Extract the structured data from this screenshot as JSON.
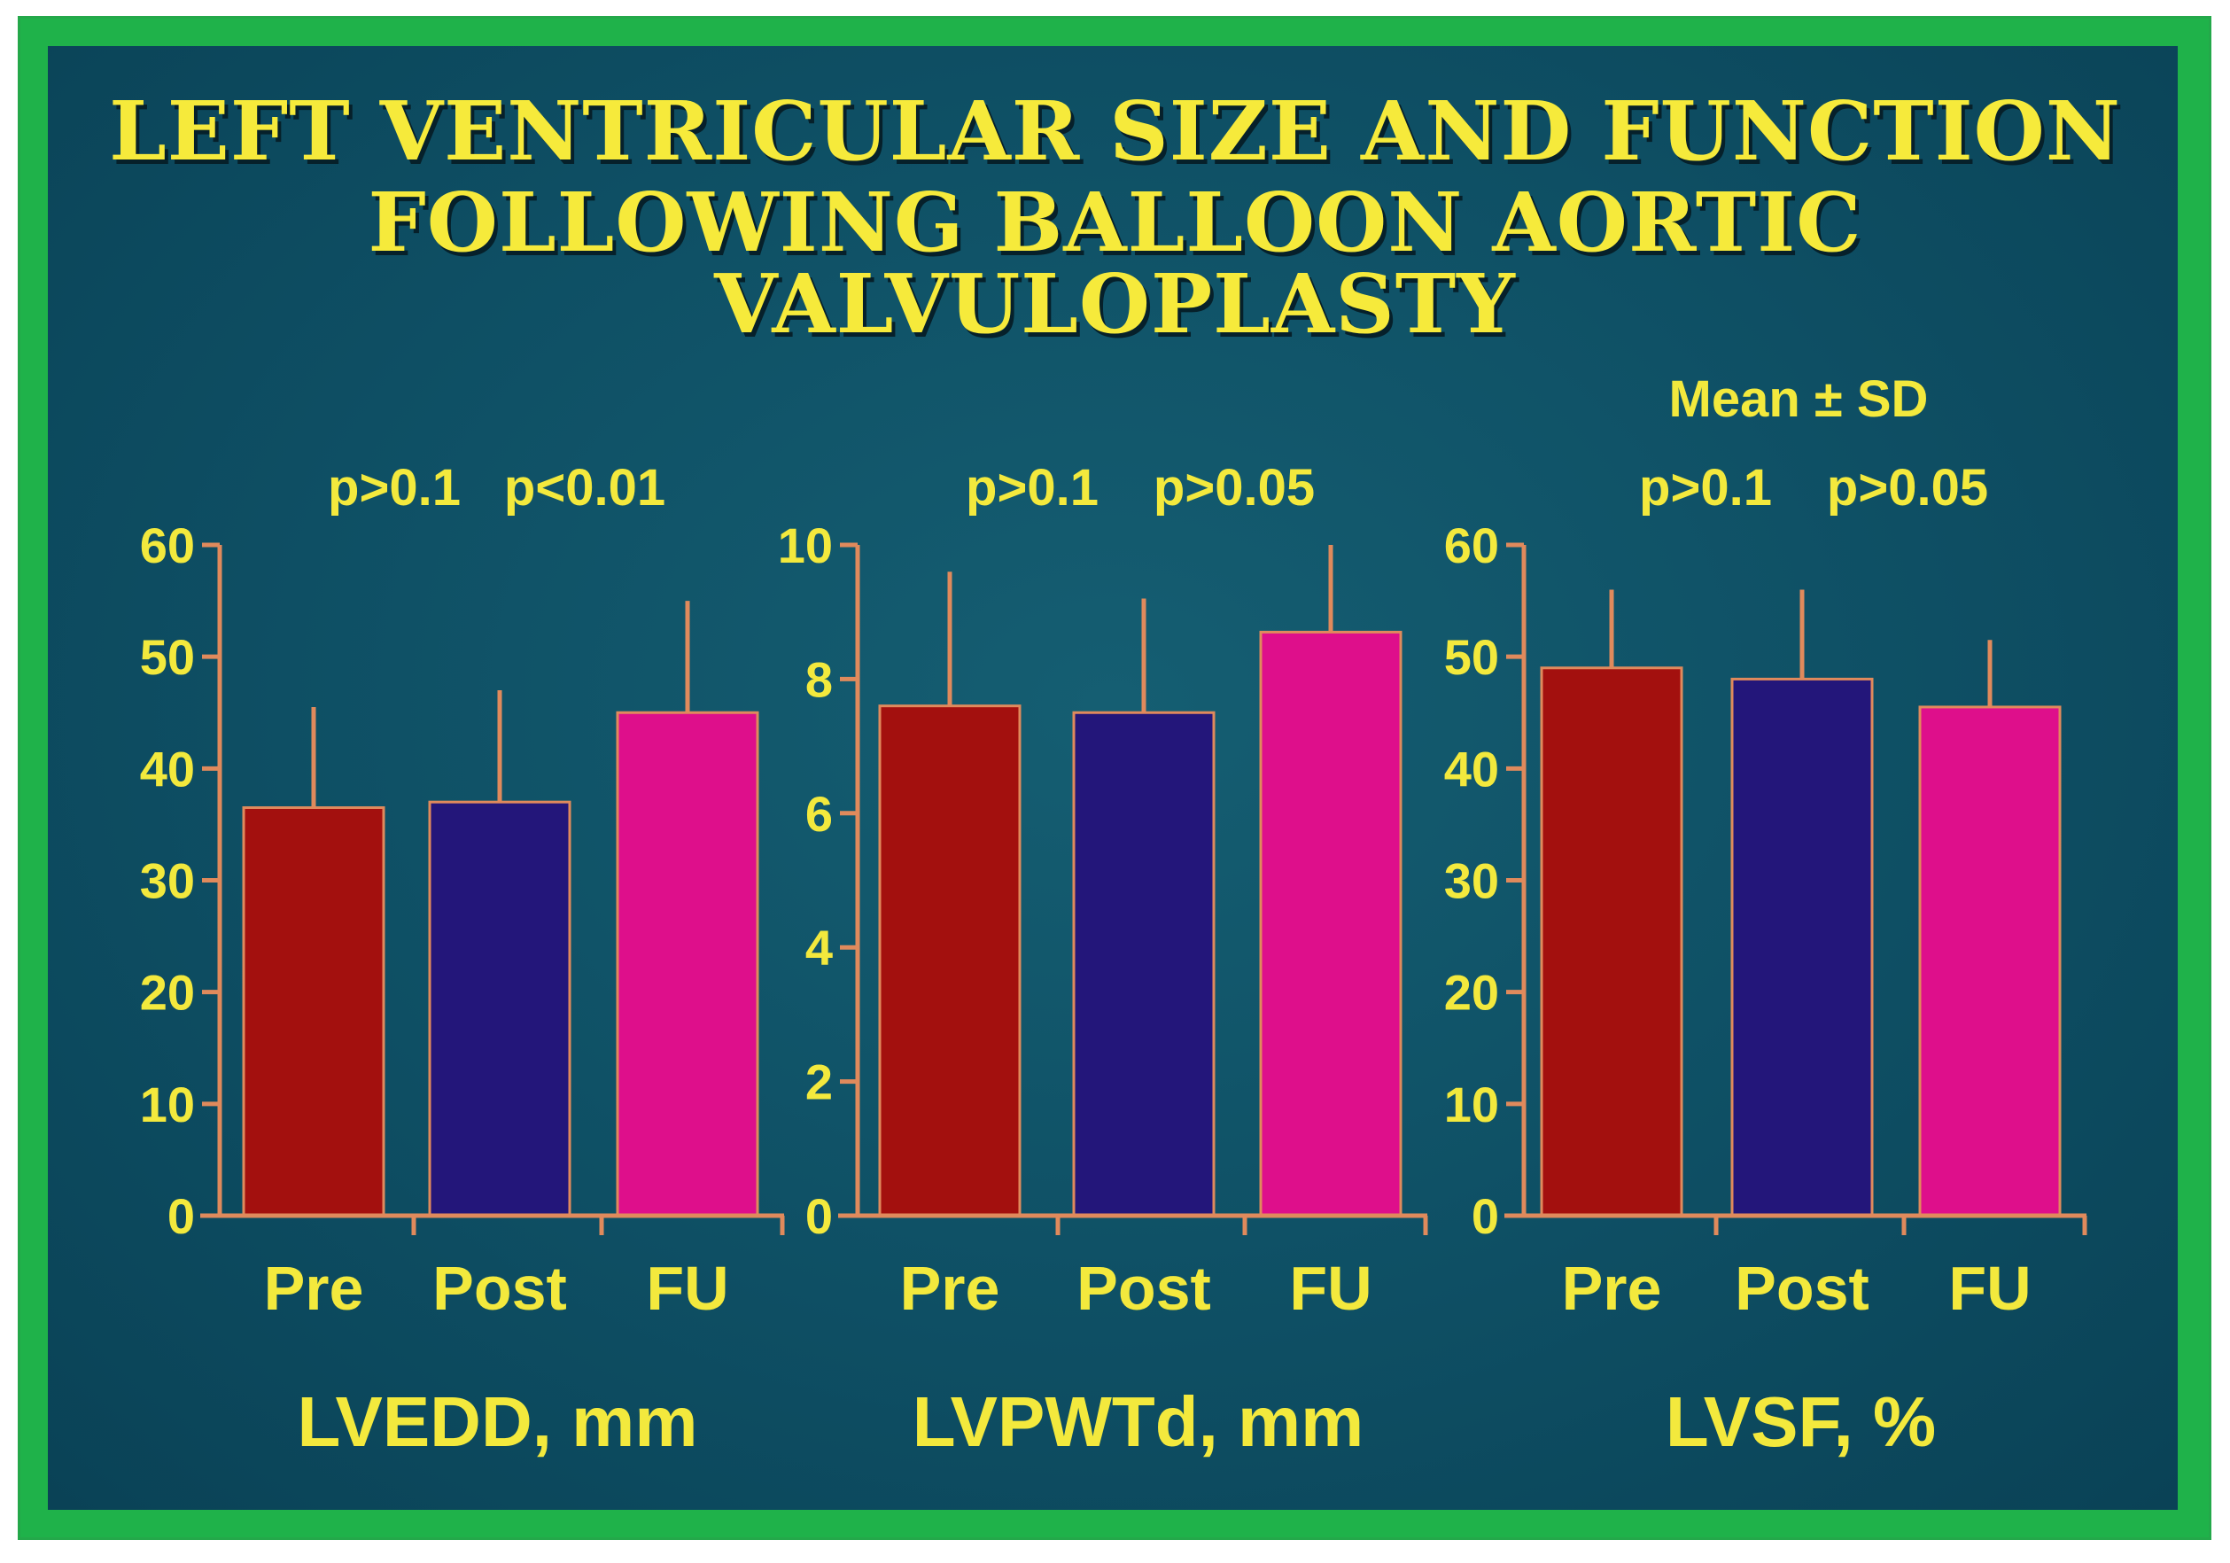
{
  "title_line1": "LEFT VENTRICULAR SIZE AND FUNCTION",
  "title_line2": "FOLLOWING BALLOON AORTIC VALVULOPLASTY",
  "note": "Mean ± SD",
  "colors": {
    "frame": "#1fb24a",
    "background": "#0f5166",
    "text": "#f3e93d",
    "axis": "#e08a5c",
    "Pre": "#a3100e",
    "Post": "#23167a",
    "FU": "#de0f8b"
  },
  "chart_data": [
    {
      "type": "bar",
      "xlabel": "LVEDD, mm",
      "categories": [
        "Pre",
        "Post",
        "FU"
      ],
      "values": [
        36.5,
        37,
        45
      ],
      "error_sd": [
        9,
        10,
        10
      ],
      "ylim": [
        0,
        60
      ],
      "yticks": [
        0,
        10,
        20,
        30,
        40,
        50,
        60
      ],
      "pvalues": [
        "p>0.1",
        "p<0.01"
      ],
      "grid": false
    },
    {
      "type": "bar",
      "xlabel": "LVPWTd, mm",
      "categories": [
        "Pre",
        "Post",
        "FU"
      ],
      "values": [
        7.6,
        7.5,
        8.7
      ],
      "error_sd": [
        2.0,
        1.7,
        1.3
      ],
      "ylim": [
        0,
        10
      ],
      "yticks": [
        0,
        2,
        4,
        6,
        8,
        10
      ],
      "pvalues": [
        "p>0.1",
        "p>0.05"
      ],
      "grid": false
    },
    {
      "type": "bar",
      "xlabel": "LVSF, %",
      "categories": [
        "Pre",
        "Post",
        "FU"
      ],
      "values": [
        49,
        48,
        45.5
      ],
      "error_sd": [
        7,
        8,
        6
      ],
      "ylim": [
        0,
        60
      ],
      "yticks": [
        0,
        10,
        20,
        30,
        40,
        50,
        60
      ],
      "pvalues": [
        "p>0.1",
        "p>0.05"
      ],
      "grid": false
    }
  ]
}
